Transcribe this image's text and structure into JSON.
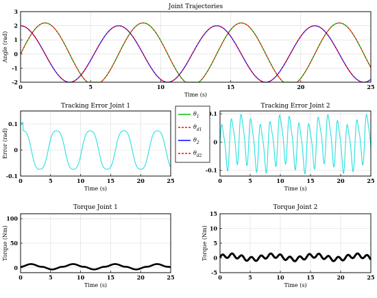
{
  "chart_data": [
    {
      "type": "line",
      "id": "traj",
      "title": "Joint Trajectories",
      "xlabel": "Time (s)",
      "ylabel": "Angle (rad)",
      "xlim": [
        0,
        25
      ],
      "ylim": [
        -2,
        3
      ],
      "xticks": [
        0,
        5,
        10,
        15,
        20,
        25
      ],
      "yticks": [
        -2,
        -1,
        0,
        1,
        2,
        3
      ],
      "grid": true,
      "series": [
        {
          "name": "θ1",
          "color": "#00c000",
          "dash": "",
          "width": 1.3,
          "amp": 2.2,
          "period": 7.0,
          "phase": 0,
          "kind": "sin"
        },
        {
          "name": "θd1",
          "color": "#ff0000",
          "dash": "3,2",
          "width": 1.1,
          "amp": 2.2,
          "period": 7.0,
          "phase": 0,
          "kind": "sin"
        },
        {
          "name": "θ2",
          "color": "#0000ff",
          "dash": "",
          "width": 1.3,
          "amp": 2.0,
          "period": 7.0,
          "phase": 0,
          "kind": "cos"
        },
        {
          "name": "θd2",
          "color": "#ff0000",
          "dash": "3,2",
          "width": 1.1,
          "amp": 2.0,
          "period": 7.0,
          "phase": 0,
          "kind": "cos"
        }
      ]
    },
    {
      "type": "line",
      "id": "err1",
      "title": "Tracking Error Joint 1",
      "xlabel": "Time (s)",
      "ylabel": "Error (rad)",
      "xlim": [
        0,
        25
      ],
      "ylim": [
        -0.1,
        0.15
      ],
      "xticks": [
        0,
        5,
        10,
        15,
        20,
        25
      ],
      "yticks": [
        -0.1,
        0,
        0.1
      ],
      "grid": true,
      "series": [
        {
          "name": "",
          "color": "#22e0e0",
          "width": 1.1,
          "amp": 0.08,
          "period": 5.6,
          "start": 0.105,
          "kind": "err1"
        }
      ]
    },
    {
      "type": "line",
      "id": "err2",
      "title": "Tracking Error Joint 2",
      "xlabel": "Time (s)",
      "ylabel": "",
      "xlim": [
        0,
        25
      ],
      "ylim": [
        -0.12,
        0.11
      ],
      "xticks": [
        0,
        5,
        10,
        15,
        20,
        25
      ],
      "yticks": [
        -0.1,
        0,
        0.1
      ],
      "grid": true,
      "series": [
        {
          "name": "",
          "color": "#22e0e0",
          "width": 1.1,
          "amp": 0.08,
          "period": 1.6,
          "kind": "err2"
        }
      ]
    },
    {
      "type": "line",
      "id": "tq1",
      "title": "Torque Joint 1",
      "xlabel": "Time (s)",
      "ylabel": "Torque (Nm)",
      "xlim": [
        0,
        25
      ],
      "ylim": [
        -10,
        110
      ],
      "xticks": [
        0,
        5,
        10,
        15,
        20,
        25
      ],
      "yticks": [
        0,
        50,
        100
      ],
      "grid": true,
      "series": [
        {
          "name": "",
          "color": "#000000",
          "width": 2.6,
          "amp": 5,
          "period": 7.0,
          "kind": "tq1"
        }
      ]
    },
    {
      "type": "line",
      "id": "tq2",
      "title": "Torque Joint 2",
      "xlabel": "Time (s)",
      "ylabel": "Torque (Nm)",
      "xlim": [
        0,
        25
      ],
      "ylim": [
        -5,
        15
      ],
      "xticks": [
        0,
        5,
        10,
        15,
        20,
        25
      ],
      "yticks": [
        -5,
        0,
        5,
        10,
        15
      ],
      "grid": true,
      "series": [
        {
          "name": "",
          "color": "#000000",
          "width": 3.0,
          "amp": 1.2,
          "period": 1.6,
          "kind": "tq2"
        }
      ]
    }
  ],
  "legend": [
    {
      "label": "θ1",
      "sub": "1",
      "base": "θ",
      "color": "#00c000",
      "dash": ""
    },
    {
      "label": "θd1",
      "sub": "d1",
      "base": "θ",
      "color": "#ff0000",
      "dash": "3,2"
    },
    {
      "label": "θ2",
      "sub": "2",
      "base": "θ",
      "color": "#0000ff",
      "dash": ""
    },
    {
      "label": "θd2",
      "sub": "d2",
      "base": "θ",
      "color": "#ff0000",
      "dash": "3,2"
    }
  ]
}
